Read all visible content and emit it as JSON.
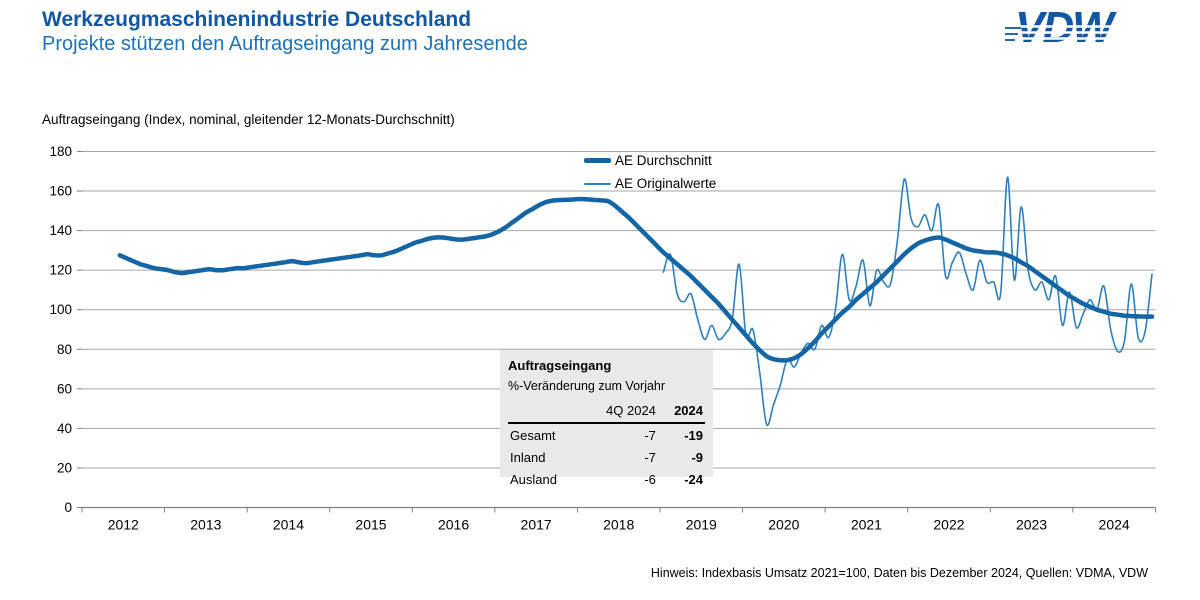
{
  "header": {
    "title": "Werkzeugmaschinenindustrie Deutschland",
    "subtitle": "Projekte stützen den Auftragseingang zum Jahresende",
    "logo_text": "VDW"
  },
  "chart_data": {
    "type": "line",
    "axis_label": "Auftragseingang (Index, nominal, gleitender 12-Monats-Durchschnitt)",
    "ylim": [
      0,
      180
    ],
    "yticks": [
      0,
      20,
      40,
      60,
      80,
      100,
      120,
      140,
      160,
      180
    ],
    "x_axis_years": [
      2012,
      2013,
      2014,
      2015,
      2016,
      2017,
      2018,
      2019,
      2020,
      2021,
      2022,
      2023,
      2024
    ],
    "grid_on": true,
    "grid_color": "#a6a6a6",
    "axis_color": "#808080",
    "legend_position": "top-center-inside",
    "series": [
      {
        "name": "AE Durchschnitt",
        "color": "#1465a5",
        "stroke_width": 4.5,
        "start_year": 2012,
        "start_month": 6,
        "values": [
          127.5,
          126,
          124.5,
          123,
          122,
          121,
          120.5,
          120,
          119,
          118.5,
          119,
          119.5,
          120,
          120.5,
          120,
          120,
          120.5,
          121,
          121,
          121.5,
          122,
          122.5,
          123,
          123.5,
          124,
          124.5,
          124,
          123.5,
          124,
          124.5,
          125,
          125.5,
          126,
          126.5,
          127,
          127.5,
          128,
          127.5,
          127.5,
          128.5,
          129.5,
          131,
          132.5,
          134,
          135,
          136,
          136.5,
          136.5,
          136,
          135.5,
          135.5,
          136,
          136.5,
          137,
          138,
          139.5,
          141.5,
          144,
          146.5,
          149,
          151,
          153,
          154.5,
          155.2,
          155.5,
          155.6,
          155.8,
          156,
          155.8,
          155.5,
          155.3,
          154.8,
          152.5,
          149.5,
          146.5,
          143,
          139.5,
          136,
          132.5,
          129,
          126,
          123,
          120,
          117,
          113.5,
          110,
          106.5,
          103,
          99,
          95,
          91,
          87,
          83,
          79.5,
          76.5,
          75,
          74.5,
          74.5,
          75.5,
          77.5,
          80.5,
          84,
          88,
          91.5,
          95,
          98.5,
          101.5,
          105,
          108,
          111,
          114,
          117.5,
          121,
          124.5,
          128,
          131,
          133.5,
          135,
          136,
          136.5,
          135.5,
          134,
          132.5,
          131,
          130,
          129.5,
          129,
          129,
          128.5,
          127.5,
          126,
          124,
          122,
          119.5,
          117,
          114.5,
          112,
          109.5,
          107,
          105,
          103,
          101.5,
          100,
          99,
          98,
          97.5,
          97,
          96.8,
          96.6,
          96.5,
          96.5
        ]
      },
      {
        "name": "AE Originalwerte",
        "color": "#2e7fbe",
        "stroke_width": 1.6,
        "start_year": 2019,
        "start_month": 1,
        "values": [
          119,
          128,
          108,
          104,
          108,
          95,
          85,
          92,
          85,
          88,
          95,
          123,
          87,
          90,
          68,
          42,
          52,
          62,
          75,
          71,
          78,
          83,
          80,
          92,
          86,
          100,
          128,
          105,
          112,
          125,
          102,
          120,
          114,
          113,
          135,
          166,
          146,
          142,
          148,
          140,
          153,
          117,
          124,
          129,
          118,
          110,
          125,
          114,
          114,
          108,
          167,
          115,
          152,
          120,
          110,
          114,
          105,
          117,
          92,
          109,
          91,
          98,
          105,
          100,
          112,
          90,
          79,
          84,
          113,
          86,
          89,
          118
        ]
      }
    ]
  },
  "inset": {
    "title": "Auftragseingang",
    "subtitle": "%-Veränderung zum Vorjahr",
    "col_headers": [
      "4Q 2024",
      "2024"
    ],
    "rows": [
      {
        "label": "Gesamt",
        "q4": "-7",
        "year": "-19"
      },
      {
        "label": "Inland",
        "q4": "-7",
        "year": "-9"
      },
      {
        "label": "Ausland",
        "q4": "-6",
        "year": "-24"
      }
    ]
  },
  "footer": {
    "note": "Hinweis: Indexbasis Umsatz 2021=100, Daten bis Dezember 2024, Quellen: VDMA, VDW"
  }
}
